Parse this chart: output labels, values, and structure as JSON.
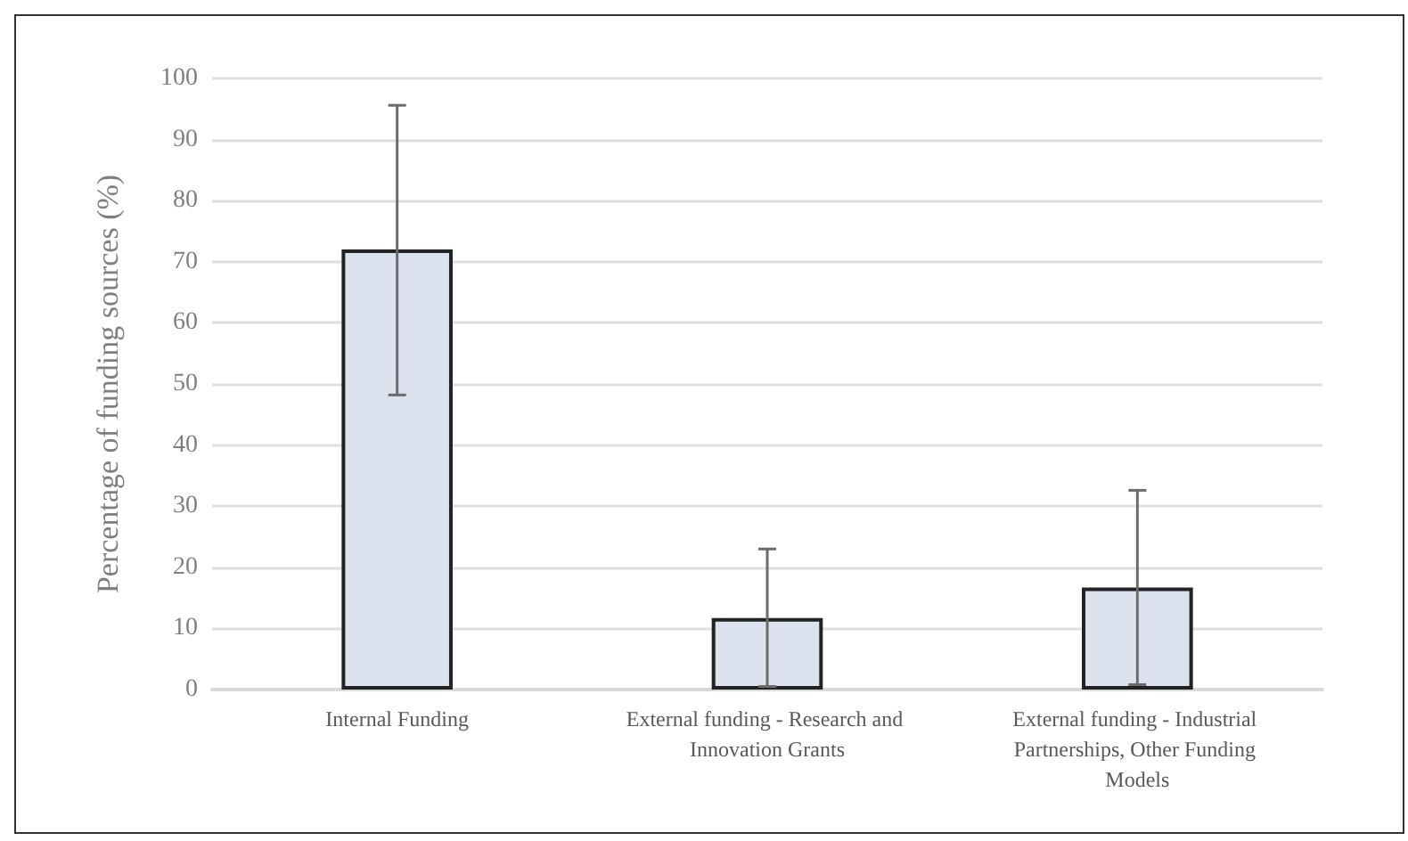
{
  "chart_data": {
    "type": "bar",
    "categories": [
      "Internal Funding",
      "External funding - Research and Innovation Grants",
      "External funding - Industrial Partnerships, Other Funding Models"
    ],
    "values": [
      72,
      11.7,
      16.7
    ],
    "errors": [
      [
        48.2,
        95.6
      ],
      [
        0.5,
        23
      ],
      [
        0.8,
        32.6
      ]
    ],
    "color": "#dde3ee",
    "ylabel": "Percentage of funding sources (%)",
    "ylim": [
      0,
      100
    ],
    "yticks": [
      0,
      10,
      20,
      30,
      40,
      50,
      60,
      70,
      80,
      90,
      100
    ],
    "grid": "y"
  }
}
